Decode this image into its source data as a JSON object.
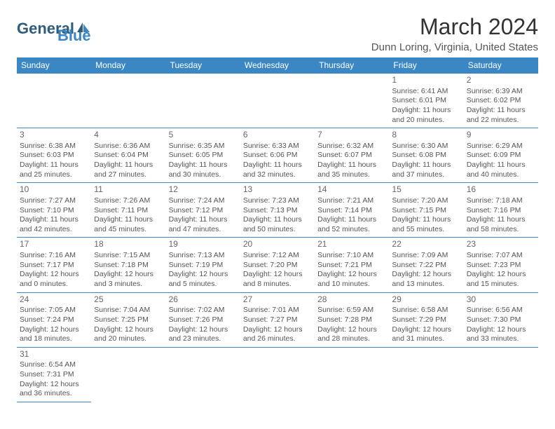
{
  "logo": {
    "text1": "General",
    "text2": "Blue"
  },
  "title": "March 2024",
  "location": "Dunn Loring, Virginia, United States",
  "colors": {
    "header_bg": "#3a87c4",
    "header_text": "#ffffff",
    "cell_border": "#3a87c4",
    "text": "#555555",
    "title": "#333333"
  },
  "fonts": {
    "title_size": 32,
    "location_size": 15,
    "header_size": 12,
    "cell_size": 10.5
  },
  "weekdays": [
    "Sunday",
    "Monday",
    "Tuesday",
    "Wednesday",
    "Thursday",
    "Friday",
    "Saturday"
  ],
  "weeks": [
    [
      null,
      null,
      null,
      null,
      null,
      {
        "n": "1",
        "sunrise": "Sunrise: 6:41 AM",
        "sunset": "Sunset: 6:01 PM",
        "daylight": "Daylight: 11 hours and 20 minutes."
      },
      {
        "n": "2",
        "sunrise": "Sunrise: 6:39 AM",
        "sunset": "Sunset: 6:02 PM",
        "daylight": "Daylight: 11 hours and 22 minutes."
      }
    ],
    [
      {
        "n": "3",
        "sunrise": "Sunrise: 6:38 AM",
        "sunset": "Sunset: 6:03 PM",
        "daylight": "Daylight: 11 hours and 25 minutes."
      },
      {
        "n": "4",
        "sunrise": "Sunrise: 6:36 AM",
        "sunset": "Sunset: 6:04 PM",
        "daylight": "Daylight: 11 hours and 27 minutes."
      },
      {
        "n": "5",
        "sunrise": "Sunrise: 6:35 AM",
        "sunset": "Sunset: 6:05 PM",
        "daylight": "Daylight: 11 hours and 30 minutes."
      },
      {
        "n": "6",
        "sunrise": "Sunrise: 6:33 AM",
        "sunset": "Sunset: 6:06 PM",
        "daylight": "Daylight: 11 hours and 32 minutes."
      },
      {
        "n": "7",
        "sunrise": "Sunrise: 6:32 AM",
        "sunset": "Sunset: 6:07 PM",
        "daylight": "Daylight: 11 hours and 35 minutes."
      },
      {
        "n": "8",
        "sunrise": "Sunrise: 6:30 AM",
        "sunset": "Sunset: 6:08 PM",
        "daylight": "Daylight: 11 hours and 37 minutes."
      },
      {
        "n": "9",
        "sunrise": "Sunrise: 6:29 AM",
        "sunset": "Sunset: 6:09 PM",
        "daylight": "Daylight: 11 hours and 40 minutes."
      }
    ],
    [
      {
        "n": "10",
        "sunrise": "Sunrise: 7:27 AM",
        "sunset": "Sunset: 7:10 PM",
        "daylight": "Daylight: 11 hours and 42 minutes."
      },
      {
        "n": "11",
        "sunrise": "Sunrise: 7:26 AM",
        "sunset": "Sunset: 7:11 PM",
        "daylight": "Daylight: 11 hours and 45 minutes."
      },
      {
        "n": "12",
        "sunrise": "Sunrise: 7:24 AM",
        "sunset": "Sunset: 7:12 PM",
        "daylight": "Daylight: 11 hours and 47 minutes."
      },
      {
        "n": "13",
        "sunrise": "Sunrise: 7:23 AM",
        "sunset": "Sunset: 7:13 PM",
        "daylight": "Daylight: 11 hours and 50 minutes."
      },
      {
        "n": "14",
        "sunrise": "Sunrise: 7:21 AM",
        "sunset": "Sunset: 7:14 PM",
        "daylight": "Daylight: 11 hours and 52 minutes."
      },
      {
        "n": "15",
        "sunrise": "Sunrise: 7:20 AM",
        "sunset": "Sunset: 7:15 PM",
        "daylight": "Daylight: 11 hours and 55 minutes."
      },
      {
        "n": "16",
        "sunrise": "Sunrise: 7:18 AM",
        "sunset": "Sunset: 7:16 PM",
        "daylight": "Daylight: 11 hours and 58 minutes."
      }
    ],
    [
      {
        "n": "17",
        "sunrise": "Sunrise: 7:16 AM",
        "sunset": "Sunset: 7:17 PM",
        "daylight": "Daylight: 12 hours and 0 minutes."
      },
      {
        "n": "18",
        "sunrise": "Sunrise: 7:15 AM",
        "sunset": "Sunset: 7:18 PM",
        "daylight": "Daylight: 12 hours and 3 minutes."
      },
      {
        "n": "19",
        "sunrise": "Sunrise: 7:13 AM",
        "sunset": "Sunset: 7:19 PM",
        "daylight": "Daylight: 12 hours and 5 minutes."
      },
      {
        "n": "20",
        "sunrise": "Sunrise: 7:12 AM",
        "sunset": "Sunset: 7:20 PM",
        "daylight": "Daylight: 12 hours and 8 minutes."
      },
      {
        "n": "21",
        "sunrise": "Sunrise: 7:10 AM",
        "sunset": "Sunset: 7:21 PM",
        "daylight": "Daylight: 12 hours and 10 minutes."
      },
      {
        "n": "22",
        "sunrise": "Sunrise: 7:09 AM",
        "sunset": "Sunset: 7:22 PM",
        "daylight": "Daylight: 12 hours and 13 minutes."
      },
      {
        "n": "23",
        "sunrise": "Sunrise: 7:07 AM",
        "sunset": "Sunset: 7:23 PM",
        "daylight": "Daylight: 12 hours and 15 minutes."
      }
    ],
    [
      {
        "n": "24",
        "sunrise": "Sunrise: 7:05 AM",
        "sunset": "Sunset: 7:24 PM",
        "daylight": "Daylight: 12 hours and 18 minutes."
      },
      {
        "n": "25",
        "sunrise": "Sunrise: 7:04 AM",
        "sunset": "Sunset: 7:25 PM",
        "daylight": "Daylight: 12 hours and 20 minutes."
      },
      {
        "n": "26",
        "sunrise": "Sunrise: 7:02 AM",
        "sunset": "Sunset: 7:26 PM",
        "daylight": "Daylight: 12 hours and 23 minutes."
      },
      {
        "n": "27",
        "sunrise": "Sunrise: 7:01 AM",
        "sunset": "Sunset: 7:27 PM",
        "daylight": "Daylight: 12 hours and 26 minutes."
      },
      {
        "n": "28",
        "sunrise": "Sunrise: 6:59 AM",
        "sunset": "Sunset: 7:28 PM",
        "daylight": "Daylight: 12 hours and 28 minutes."
      },
      {
        "n": "29",
        "sunrise": "Sunrise: 6:58 AM",
        "sunset": "Sunset: 7:29 PM",
        "daylight": "Daylight: 12 hours and 31 minutes."
      },
      {
        "n": "30",
        "sunrise": "Sunrise: 6:56 AM",
        "sunset": "Sunset: 7:30 PM",
        "daylight": "Daylight: 12 hours and 33 minutes."
      }
    ],
    [
      {
        "n": "31",
        "sunrise": "Sunrise: 6:54 AM",
        "sunset": "Sunset: 7:31 PM",
        "daylight": "Daylight: 12 hours and 36 minutes."
      },
      null,
      null,
      null,
      null,
      null,
      null
    ]
  ]
}
